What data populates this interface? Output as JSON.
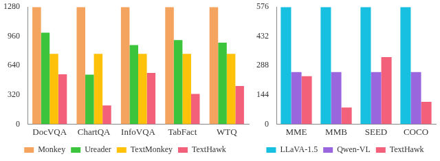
{
  "chart_data": [
    {
      "type": "bar",
      "categories": [
        "DocVQA",
        "ChartQA",
        "InfoVQA",
        "TabFact",
        "WTQ"
      ],
      "series": [
        {
          "name": "Monkey",
          "color": "#f5a460",
          "values": [
            1280,
            1280,
            1280,
            1280,
            1280
          ]
        },
        {
          "name": "Ureader",
          "color": "#3dc43d",
          "values": [
            1000,
            540,
            864,
            918,
            890
          ]
        },
        {
          "name": "TextMonkey",
          "color": "#ffc10a",
          "values": [
            768,
            768,
            768,
            768,
            768
          ]
        },
        {
          "name": "TextHawk",
          "color": "#f2607a",
          "values": [
            544,
            204,
            560,
            330,
            416
          ]
        }
      ],
      "ylim": [
        0,
        1280
      ],
      "yticks": [
        0,
        320,
        640,
        960,
        1280
      ],
      "grid": false,
      "legend": "bottom"
    },
    {
      "type": "bar",
      "categories": [
        "MME",
        "MMB",
        "SEED",
        "COCO"
      ],
      "series": [
        {
          "name": "LLaVA-1.5",
          "color": "#17bfe0",
          "values": [
            576,
            576,
            576,
            576
          ]
        },
        {
          "name": "Qwen-VL",
          "color": "#9a66dd",
          "values": [
            256,
            256,
            256,
            256
          ]
        },
        {
          "name": "TextHawk",
          "color": "#f2607a",
          "values": [
            236,
            82,
            330,
            110
          ]
        }
      ],
      "ylim": [
        0,
        576
      ],
      "yticks": [
        0,
        144,
        288,
        432,
        576
      ],
      "grid": false,
      "legend": "bottom"
    }
  ]
}
